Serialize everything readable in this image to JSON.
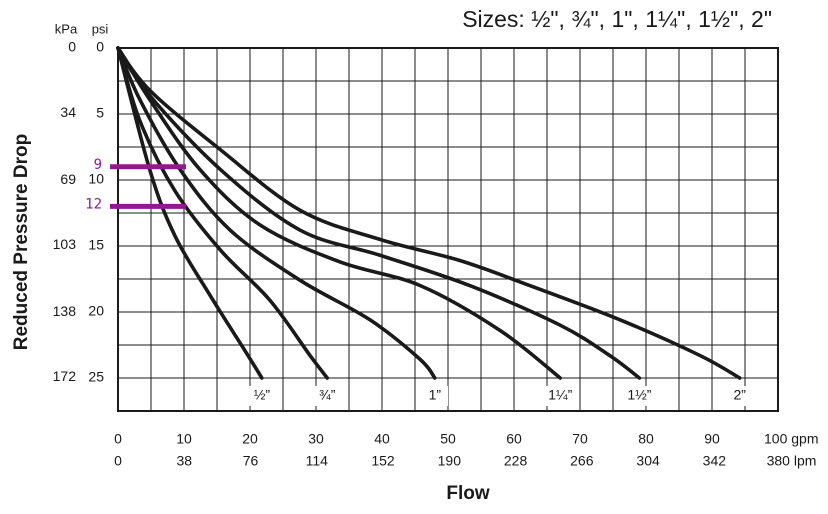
{
  "chart_data": {
    "type": "line",
    "title": "Sizes: ½\", ¾\", 1\", 1¼\", 1½\", 2\"",
    "x_label": "Flow",
    "y_label": "Reduced Pressure Drop",
    "y_unit": "psi",
    "y2_unit": "kPa",
    "xlim": [
      0,
      100
    ],
    "xticks": [
      0,
      10,
      20,
      30,
      40,
      50,
      60,
      70,
      80,
      90,
      {
        "value": 100,
        "label": "100 gpm"
      }
    ],
    "x2lim": [
      0,
      378.5
    ],
    "x2ticks": [
      0,
      38,
      76,
      114,
      152,
      190,
      228,
      266,
      304,
      342,
      {
        "value": 380,
        "label": "380 lpm"
      }
    ],
    "ylim": [
      0,
      27.5
    ],
    "yticks": [
      0,
      5,
      10,
      15,
      20,
      25
    ],
    "y2lim": [
      0,
      189.6
    ],
    "y2ticks": [
      0,
      34,
      69,
      103,
      138,
      172
    ],
    "y_inverted": true,
    "grid": true,
    "series": [
      {
        "name": "½”",
        "color": "#1a1a1a",
        "x": [
          0,
          4.8,
          8.6,
          13.9,
          19.2,
          21.8
        ],
        "values": [
          0,
          9.2,
          14.2,
          18.7,
          22.9,
          25
        ]
      },
      {
        "name": "¾”",
        "color": "#1a1a1a",
        "x": [
          0,
          3.3,
          8.6,
          15.5,
          23,
          29.1,
          31.7
        ],
        "values": [
          0,
          5.5,
          10.8,
          15.3,
          19.1,
          23.3,
          25
        ]
      },
      {
        "name": "1”",
        "color": "#1a1a1a",
        "x": [
          0,
          3.3,
          9.4,
          17,
          27.6,
          38.2,
          45.8,
          48
        ],
        "values": [
          0,
          3.9,
          9.2,
          13.8,
          17.6,
          20.6,
          23.6,
          25
        ]
      },
      {
        "name": "1¼”",
        "color": "#1a1a1a",
        "x": [
          0,
          4.8,
          12.4,
          21.5,
          33.6,
          45.8,
          57.9,
          67
        ],
        "values": [
          0,
          3.9,
          9.2,
          13.4,
          16.2,
          18,
          21.4,
          25
        ]
      },
      {
        "name": "1½”",
        "color": "#1a1a1a",
        "x": [
          0,
          4.8,
          15.5,
          27.6,
          39.7,
          53.3,
          67,
          74.5,
          79
        ],
        "values": [
          0,
          3.6,
          9.2,
          13.8,
          15.7,
          18,
          21,
          23.3,
          25
        ]
      },
      {
        "name": "2”",
        "color": "#1a1a1a",
        "x": [
          0,
          4.8,
          15.5,
          27.6,
          39.7,
          51.8,
          62.4,
          76.1,
          88.2,
          94.2
        ],
        "values": [
          0,
          3.2,
          7.7,
          12.3,
          14.5,
          16.1,
          18,
          20.6,
          23.3,
          25
        ]
      }
    ],
    "annotations": [
      {
        "label": "9",
        "value": 9,
        "x": [
          0,
          10.3
        ],
        "color": "#8e1b8e"
      },
      {
        "label": "12",
        "value": 12,
        "x": [
          0,
          10.3
        ],
        "color": "#8e1b8e"
      }
    ]
  }
}
